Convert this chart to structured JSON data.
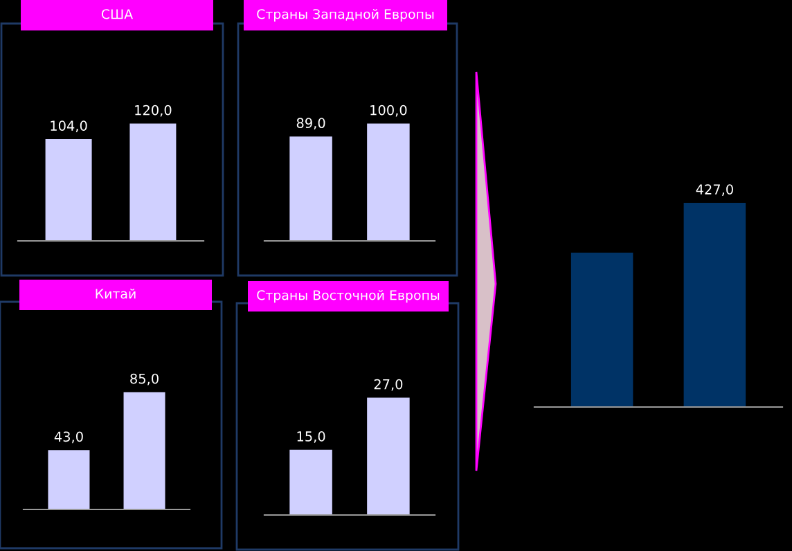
{
  "chart_data": [
    {
      "type": "bar",
      "title": "США",
      "categories": [
        null,
        null
      ],
      "values": [
        104.0,
        120.0
      ],
      "value_labels": [
        "104,0",
        "120,0"
      ],
      "color": "#d0d0ff"
    },
    {
      "type": "bar",
      "title": "Страны Западной Европы",
      "categories": [
        null,
        null
      ],
      "values": [
        89.0,
        100.0
      ],
      "value_labels": [
        "89,0",
        "100,0"
      ],
      "color": "#d0d0ff"
    },
    {
      "type": "bar",
      "title": "Китай",
      "categories": [
        null,
        null
      ],
      "values": [
        43.0,
        85.0
      ],
      "value_labels": [
        "43,0",
        "85,0"
      ],
      "color": "#d0d0ff"
    },
    {
      "type": "bar",
      "title": "Страны Восточной Европы",
      "categories": [
        null,
        null
      ],
      "values": [
        15.0,
        27.0
      ],
      "value_labels": [
        "15,0",
        "27,0"
      ],
      "color": "#d0d0ff"
    },
    {
      "type": "bar",
      "categories": [
        null,
        null
      ],
      "values": [
        323,
        427.0
      ],
      "value_labels": [
        null,
        "427,0"
      ],
      "color": "#003366"
    }
  ]
}
